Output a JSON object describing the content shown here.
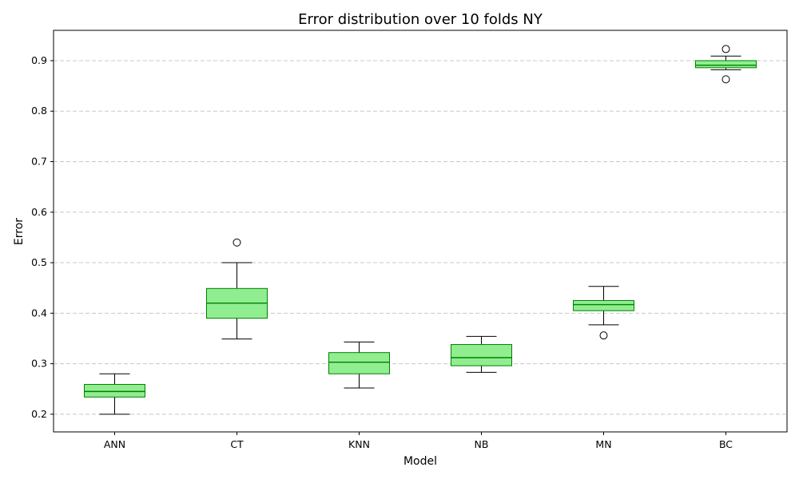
{
  "chart_data": {
    "type": "boxplot",
    "title": "Error distribution over 10 folds NY",
    "xlabel": "Model",
    "ylabel": "Error",
    "ylim": [
      0.165,
      0.96
    ],
    "yticks": [
      0.2,
      0.3,
      0.4,
      0.5,
      0.6,
      0.7,
      0.8,
      0.9
    ],
    "ytick_labels": [
      "0.2",
      "0.3",
      "0.4",
      "0.5",
      "0.6",
      "0.7",
      "0.8",
      "0.9"
    ],
    "grid": "y-dashed",
    "categories": [
      "ANN",
      "CT",
      "KNN",
      "NB",
      "MN",
      "BC"
    ],
    "boxes": [
      {
        "whisker_low": 0.2,
        "q1": 0.234,
        "median": 0.245,
        "q3": 0.259,
        "whisker_high": 0.28,
        "outliers": []
      },
      {
        "whisker_low": 0.349,
        "q1": 0.39,
        "median": 0.42,
        "q3": 0.449,
        "whisker_high": 0.5,
        "outliers": [
          0.54
        ]
      },
      {
        "whisker_low": 0.252,
        "q1": 0.28,
        "median": 0.303,
        "q3": 0.322,
        "whisker_high": 0.343,
        "outliers": []
      },
      {
        "whisker_low": 0.283,
        "q1": 0.296,
        "median": 0.312,
        "q3": 0.338,
        "whisker_high": 0.354,
        "outliers": []
      },
      {
        "whisker_low": 0.377,
        "q1": 0.405,
        "median": 0.417,
        "q3": 0.425,
        "whisker_high": 0.453,
        "outliers": [
          0.356
        ]
      },
      {
        "whisker_low": 0.882,
        "q1": 0.886,
        "median": 0.891,
        "q3": 0.9,
        "whisker_high": 0.909,
        "outliers": [
          0.923,
          0.863
        ]
      }
    ],
    "colors": {
      "box_fill": "#90ee90",
      "box_edge": "#008000",
      "median": "#008000",
      "whisker": "#000000",
      "grid": "#c8c8c8"
    }
  }
}
